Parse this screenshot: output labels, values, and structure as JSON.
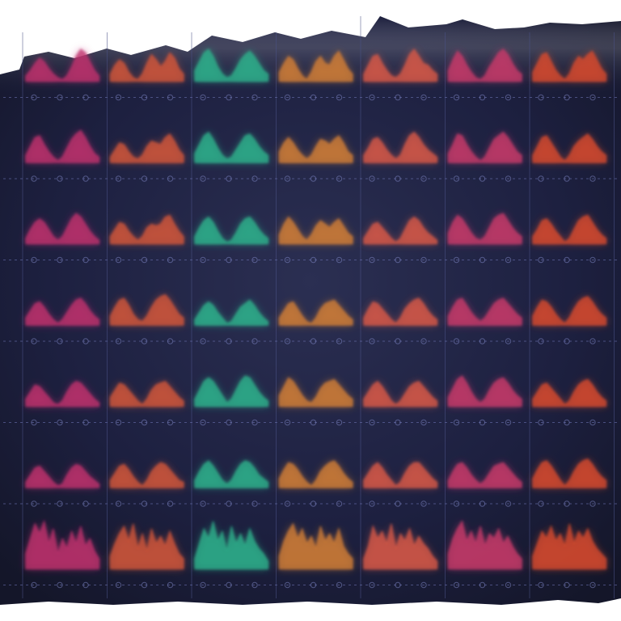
{
  "chart_data": {
    "type": "area",
    "title": "",
    "xlabel": "",
    "ylabel": "",
    "grid": true,
    "legend": "none",
    "layout": {
      "columns": 7,
      "rows": 7
    },
    "background": "#1a1d33",
    "column_colors": [
      "#c0306e",
      "#d2553a",
      "#2fb28c",
      "#d27d35",
      "#d85a47",
      "#c83a6a",
      "#d84b2e"
    ],
    "shape_x": [
      0,
      1,
      2,
      3,
      4,
      5,
      6,
      7,
      8,
      9,
      10,
      11,
      12,
      13,
      14,
      15,
      16
    ],
    "rows": [
      {
        "series": [
          [
            0.15,
            0.3,
            0.5,
            0.65,
            0.55,
            0.35,
            0.2,
            0.1,
            0.05,
            0.15,
            0.4,
            0.7,
            0.9,
            0.8,
            0.55,
            0.3,
            0.15
          ],
          [
            0.2,
            0.45,
            0.6,
            0.5,
            0.25,
            0.1,
            0.05,
            0.2,
            0.5,
            0.75,
            0.6,
            0.4,
            0.55,
            0.8,
            0.65,
            0.35,
            0.2
          ],
          [
            0.3,
            0.55,
            0.8,
            0.9,
            0.7,
            0.4,
            0.2,
            0.1,
            0.15,
            0.35,
            0.6,
            0.75,
            0.85,
            0.7,
            0.5,
            0.3,
            0.2
          ],
          [
            0.25,
            0.5,
            0.7,
            0.6,
            0.35,
            0.15,
            0.05,
            0.25,
            0.55,
            0.7,
            0.5,
            0.45,
            0.7,
            0.85,
            0.6,
            0.35,
            0.2
          ],
          [
            0.2,
            0.45,
            0.7,
            0.75,
            0.5,
            0.3,
            0.15,
            0.1,
            0.2,
            0.45,
            0.75,
            0.9,
            0.7,
            0.5,
            0.45,
            0.3,
            0.2
          ],
          [
            0.3,
            0.6,
            0.85,
            0.7,
            0.45,
            0.25,
            0.1,
            0.05,
            0.15,
            0.4,
            0.6,
            0.8,
            0.9,
            0.75,
            0.5,
            0.3,
            0.2
          ],
          [
            0.25,
            0.5,
            0.75,
            0.8,
            0.55,
            0.3,
            0.15,
            0.05,
            0.2,
            0.5,
            0.7,
            0.6,
            0.75,
            0.85,
            0.6,
            0.35,
            0.2
          ]
        ]
      },
      {
        "series": [
          [
            0.2,
            0.45,
            0.7,
            0.75,
            0.5,
            0.3,
            0.15,
            0.05,
            0.15,
            0.4,
            0.65,
            0.8,
            0.9,
            0.7,
            0.45,
            0.25,
            0.15
          ],
          [
            0.15,
            0.35,
            0.55,
            0.5,
            0.3,
            0.15,
            0.1,
            0.2,
            0.45,
            0.6,
            0.55,
            0.5,
            0.7,
            0.8,
            0.6,
            0.35,
            0.2
          ],
          [
            0.25,
            0.5,
            0.75,
            0.85,
            0.65,
            0.4,
            0.2,
            0.1,
            0.15,
            0.35,
            0.55,
            0.75,
            0.8,
            0.65,
            0.45,
            0.3,
            0.2
          ],
          [
            0.3,
            0.55,
            0.7,
            0.55,
            0.35,
            0.2,
            0.1,
            0.2,
            0.45,
            0.65,
            0.6,
            0.5,
            0.65,
            0.75,
            0.55,
            0.3,
            0.2
          ],
          [
            0.2,
            0.4,
            0.65,
            0.7,
            0.55,
            0.35,
            0.2,
            0.1,
            0.2,
            0.5,
            0.75,
            0.85,
            0.7,
            0.5,
            0.35,
            0.25,
            0.15
          ],
          [
            0.25,
            0.5,
            0.8,
            0.75,
            0.5,
            0.3,
            0.15,
            0.05,
            0.15,
            0.4,
            0.65,
            0.75,
            0.85,
            0.7,
            0.5,
            0.3,
            0.2
          ],
          [
            0.2,
            0.45,
            0.7,
            0.75,
            0.55,
            0.35,
            0.15,
            0.05,
            0.2,
            0.45,
            0.6,
            0.7,
            0.8,
            0.65,
            0.45,
            0.3,
            0.2
          ]
        ]
      },
      {
        "series": [
          [
            0.15,
            0.4,
            0.6,
            0.7,
            0.6,
            0.4,
            0.2,
            0.1,
            0.2,
            0.45,
            0.7,
            0.85,
            0.75,
            0.55,
            0.35,
            0.2,
            0.1
          ],
          [
            0.2,
            0.4,
            0.6,
            0.55,
            0.35,
            0.2,
            0.1,
            0.2,
            0.45,
            0.55,
            0.5,
            0.55,
            0.75,
            0.8,
            0.55,
            0.35,
            0.2
          ],
          [
            0.2,
            0.45,
            0.65,
            0.75,
            0.6,
            0.35,
            0.15,
            0.05,
            0.1,
            0.3,
            0.55,
            0.7,
            0.75,
            0.6,
            0.4,
            0.25,
            0.15
          ],
          [
            0.25,
            0.55,
            0.75,
            0.6,
            0.4,
            0.2,
            0.1,
            0.25,
            0.5,
            0.65,
            0.55,
            0.45,
            0.6,
            0.7,
            0.5,
            0.3,
            0.2
          ],
          [
            0.15,
            0.35,
            0.55,
            0.6,
            0.45,
            0.3,
            0.15,
            0.05,
            0.15,
            0.4,
            0.65,
            0.75,
            0.65,
            0.45,
            0.3,
            0.2,
            0.1
          ],
          [
            0.3,
            0.6,
            0.8,
            0.7,
            0.5,
            0.3,
            0.15,
            0.1,
            0.2,
            0.45,
            0.7,
            0.8,
            0.85,
            0.65,
            0.45,
            0.3,
            0.2
          ],
          [
            0.2,
            0.4,
            0.65,
            0.7,
            0.55,
            0.35,
            0.2,
            0.05,
            0.15,
            0.4,
            0.65,
            0.75,
            0.8,
            0.6,
            0.4,
            0.25,
            0.15
          ]
        ]
      },
      {
        "series": [
          [
            0.2,
            0.4,
            0.6,
            0.65,
            0.5,
            0.3,
            0.15,
            0.05,
            0.15,
            0.35,
            0.55,
            0.7,
            0.75,
            0.6,
            0.4,
            0.25,
            0.15
          ],
          [
            0.25,
            0.5,
            0.7,
            0.75,
            0.55,
            0.3,
            0.15,
            0.1,
            0.25,
            0.5,
            0.7,
            0.8,
            0.85,
            0.7,
            0.5,
            0.3,
            0.2
          ],
          [
            0.15,
            0.35,
            0.55,
            0.65,
            0.55,
            0.35,
            0.2,
            0.05,
            0.1,
            0.3,
            0.5,
            0.6,
            0.7,
            0.55,
            0.35,
            0.2,
            0.1
          ],
          [
            0.2,
            0.4,
            0.6,
            0.65,
            0.45,
            0.25,
            0.1,
            0.05,
            0.2,
            0.45,
            0.6,
            0.65,
            0.7,
            0.55,
            0.4,
            0.25,
            0.15
          ],
          [
            0.2,
            0.45,
            0.65,
            0.6,
            0.45,
            0.3,
            0.15,
            0.05,
            0.2,
            0.45,
            0.6,
            0.7,
            0.75,
            0.6,
            0.4,
            0.25,
            0.15
          ],
          [
            0.25,
            0.5,
            0.7,
            0.75,
            0.55,
            0.35,
            0.2,
            0.1,
            0.2,
            0.4,
            0.6,
            0.7,
            0.75,
            0.6,
            0.45,
            0.3,
            0.2
          ],
          [
            0.25,
            0.5,
            0.7,
            0.65,
            0.5,
            0.3,
            0.15,
            0.05,
            0.2,
            0.45,
            0.65,
            0.75,
            0.8,
            0.65,
            0.45,
            0.3,
            0.2
          ]
        ]
      },
      {
        "series": [
          [
            0.2,
            0.4,
            0.6,
            0.55,
            0.4,
            0.25,
            0.1,
            0.05,
            0.15,
            0.4,
            0.6,
            0.7,
            0.65,
            0.5,
            0.35,
            0.2,
            0.1
          ],
          [
            0.25,
            0.45,
            0.65,
            0.6,
            0.45,
            0.3,
            0.15,
            0.05,
            0.2,
            0.45,
            0.6,
            0.65,
            0.7,
            0.55,
            0.4,
            0.25,
            0.15
          ],
          [
            0.2,
            0.45,
            0.7,
            0.8,
            0.7,
            0.5,
            0.3,
            0.1,
            0.2,
            0.45,
            0.7,
            0.85,
            0.8,
            0.6,
            0.4,
            0.25,
            0.15
          ],
          [
            0.3,
            0.55,
            0.8,
            0.7,
            0.5,
            0.3,
            0.15,
            0.1,
            0.25,
            0.5,
            0.65,
            0.7,
            0.75,
            0.6,
            0.45,
            0.3,
            0.2
          ],
          [
            0.2,
            0.4,
            0.6,
            0.7,
            0.55,
            0.35,
            0.15,
            0.05,
            0.15,
            0.35,
            0.55,
            0.65,
            0.7,
            0.55,
            0.4,
            0.25,
            0.15
          ],
          [
            0.25,
            0.5,
            0.75,
            0.85,
            0.65,
            0.4,
            0.2,
            0.1,
            0.2,
            0.45,
            0.65,
            0.75,
            0.8,
            0.65,
            0.45,
            0.3,
            0.2
          ],
          [
            0.2,
            0.4,
            0.6,
            0.65,
            0.5,
            0.35,
            0.2,
            0.05,
            0.15,
            0.4,
            0.6,
            0.7,
            0.75,
            0.6,
            0.4,
            0.25,
            0.15
          ]
        ]
      },
      {
        "series": [
          [
            0.15,
            0.35,
            0.55,
            0.6,
            0.45,
            0.3,
            0.15,
            0.05,
            0.1,
            0.35,
            0.55,
            0.65,
            0.6,
            0.45,
            0.3,
            0.2,
            0.1
          ],
          [
            0.2,
            0.4,
            0.6,
            0.65,
            0.5,
            0.3,
            0.15,
            0.05,
            0.2,
            0.45,
            0.6,
            0.7,
            0.65,
            0.5,
            0.35,
            0.2,
            0.15
          ],
          [
            0.2,
            0.45,
            0.65,
            0.75,
            0.6,
            0.4,
            0.2,
            0.1,
            0.2,
            0.45,
            0.65,
            0.75,
            0.7,
            0.55,
            0.35,
            0.25,
            0.15
          ],
          [
            0.25,
            0.5,
            0.7,
            0.65,
            0.5,
            0.3,
            0.15,
            0.05,
            0.2,
            0.45,
            0.6,
            0.7,
            0.75,
            0.6,
            0.4,
            0.25,
            0.15
          ],
          [
            0.2,
            0.4,
            0.6,
            0.7,
            0.55,
            0.35,
            0.2,
            0.05,
            0.15,
            0.4,
            0.6,
            0.7,
            0.7,
            0.55,
            0.4,
            0.25,
            0.15
          ],
          [
            0.2,
            0.45,
            0.65,
            0.7,
            0.55,
            0.35,
            0.2,
            0.1,
            0.2,
            0.4,
            0.6,
            0.65,
            0.7,
            0.55,
            0.4,
            0.25,
            0.15
          ],
          [
            0.25,
            0.5,
            0.7,
            0.75,
            0.6,
            0.4,
            0.2,
            0.05,
            0.2,
            0.45,
            0.65,
            0.75,
            0.8,
            0.65,
            0.45,
            0.3,
            0.2
          ]
        ]
      },
      {
        "series": [
          [
            0.3,
            0.6,
            0.9,
            0.7,
            0.95,
            0.5,
            0.8,
            0.3,
            0.6,
            0.4,
            0.75,
            0.5,
            0.85,
            0.45,
            0.6,
            0.35,
            0.2
          ],
          [
            0.25,
            0.5,
            0.7,
            0.85,
            0.55,
            0.9,
            0.4,
            0.7,
            0.35,
            0.8,
            0.5,
            0.65,
            0.45,
            0.75,
            0.5,
            0.3,
            0.2
          ],
          [
            0.2,
            0.5,
            0.8,
            0.6,
            0.95,
            0.55,
            0.75,
            0.35,
            0.85,
            0.5,
            0.7,
            0.45,
            0.8,
            0.55,
            0.4,
            0.3,
            0.15
          ],
          [
            0.25,
            0.55,
            0.75,
            0.9,
            0.6,
            0.8,
            0.5,
            0.65,
            0.4,
            0.85,
            0.55,
            0.7,
            0.5,
            0.8,
            0.45,
            0.3,
            0.2
          ],
          [
            0.2,
            0.45,
            0.85,
            0.6,
            0.75,
            0.5,
            0.9,
            0.4,
            0.7,
            0.55,
            0.8,
            0.45,
            0.65,
            0.5,
            0.4,
            0.25,
            0.15
          ],
          [
            0.3,
            0.6,
            0.8,
            0.95,
            0.55,
            0.75,
            0.5,
            0.85,
            0.45,
            0.7,
            0.6,
            0.8,
            0.5,
            0.65,
            0.45,
            0.3,
            0.2
          ],
          [
            0.25,
            0.5,
            0.75,
            0.6,
            0.85,
            0.55,
            0.7,
            0.45,
            0.9,
            0.5,
            0.75,
            0.6,
            0.8,
            0.55,
            0.4,
            0.3,
            0.2
          ]
        ]
      }
    ]
  }
}
